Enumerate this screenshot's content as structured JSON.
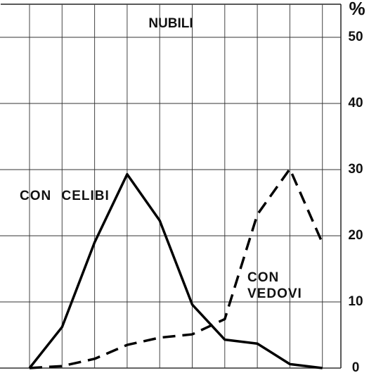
{
  "chart_data": {
    "type": "line",
    "title": "NUBILI",
    "y_unit": "%",
    "categories": [
      null,
      null,
      null,
      null,
      null,
      null,
      null,
      null,
      null,
      null
    ],
    "series": [
      {
        "name": "CON CELIBI",
        "color": "#000000",
        "line_style": "solid",
        "values": [
          0,
          6.2,
          19,
          29.3,
          22.3,
          9.6,
          4.3,
          3.7,
          0.6,
          0
        ]
      },
      {
        "name": "CON VEDOVI",
        "color": "#000000",
        "line_style": "dashed",
        "values": [
          0,
          0.3,
          1.4,
          3.5,
          4.6,
          5.1,
          7.4,
          23.2,
          30.1,
          18.9
        ]
      }
    ],
    "ylim": [
      0,
      55
    ],
    "yticks": [
      0,
      10,
      20,
      30,
      40,
      50
    ],
    "grid": true
  }
}
